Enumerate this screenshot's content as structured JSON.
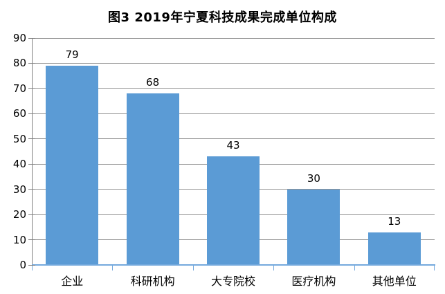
{
  "chart_data": {
    "type": "bar",
    "title": "图3 2019年宁夏科技成果完成单位构成",
    "categories": [
      "企业",
      "科研机构",
      "大专院校",
      "医疗机构",
      "其他单位"
    ],
    "values": [
      79,
      68,
      43,
      30,
      13
    ],
    "data_labels": [
      "79",
      "68",
      "43",
      "30",
      "13"
    ],
    "ylim": [
      0,
      90
    ],
    "yticks": [
      0,
      10,
      20,
      30,
      40,
      50,
      60,
      70,
      80,
      90
    ],
    "xlabel": "",
    "ylabel": "",
    "grid": true,
    "legend_position": "none",
    "colors": {
      "bar": "#5B9BD5",
      "gridline": "#909090",
      "y_axis_line": "#7F7F7F",
      "x_axis_line": "#74A9DD",
      "text": "#000000",
      "background": "#FFFFFF"
    }
  }
}
